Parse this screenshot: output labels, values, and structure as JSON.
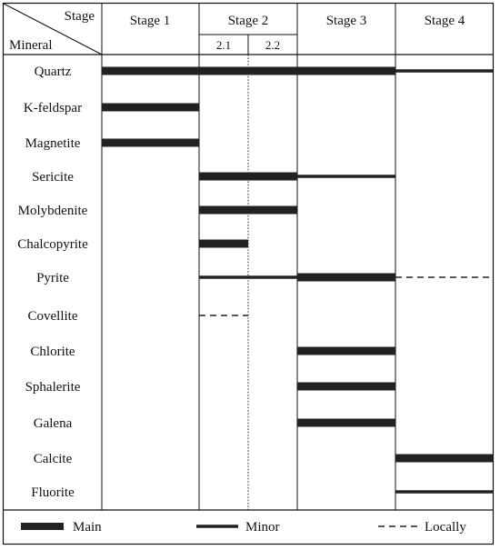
{
  "header": {
    "stage_label": "Stage",
    "mineral_label": "Mineral"
  },
  "stages": [
    {
      "label": "Stage 1"
    },
    {
      "label": "Stage 2",
      "substages": [
        "2.1",
        "2.2"
      ]
    },
    {
      "label": "Stage 3"
    },
    {
      "label": "Stage 4"
    }
  ],
  "minerals": [
    {
      "name": "Quartz",
      "segments": [
        {
          "from": "1",
          "to": "3",
          "weight": "main"
        },
        {
          "from": "4",
          "to": "4",
          "weight": "minor"
        }
      ]
    },
    {
      "name": "K-feldspar",
      "segments": [
        {
          "from": "1",
          "to": "1",
          "weight": "main"
        }
      ]
    },
    {
      "name": "Magnetite",
      "segments": [
        {
          "from": "1",
          "to": "1",
          "weight": "main"
        }
      ]
    },
    {
      "name": "Sericite",
      "segments": [
        {
          "from": "2.1",
          "to": "2.2",
          "weight": "main"
        },
        {
          "from": "3",
          "to": "3",
          "weight": "minor"
        }
      ]
    },
    {
      "name": "Molybdenite",
      "segments": [
        {
          "from": "2.1",
          "to": "2.2",
          "weight": "main"
        }
      ]
    },
    {
      "name": "Chalcopyrite",
      "segments": [
        {
          "from": "2.1",
          "to": "2.1",
          "weight": "main"
        }
      ]
    },
    {
      "name": "Pyrite",
      "segments": [
        {
          "from": "2.1",
          "to": "2.2",
          "weight": "minor"
        },
        {
          "from": "3",
          "to": "3",
          "weight": "main"
        },
        {
          "from": "4",
          "to": "4",
          "weight": "locally"
        }
      ]
    },
    {
      "name": "Covellite",
      "segments": [
        {
          "from": "2.1",
          "to": "2.1",
          "weight": "locally"
        }
      ]
    },
    {
      "name": "Chlorite",
      "segments": [
        {
          "from": "3",
          "to": "3",
          "weight": "main"
        }
      ]
    },
    {
      "name": "Sphalerite",
      "segments": [
        {
          "from": "3",
          "to": "3",
          "weight": "main"
        }
      ]
    },
    {
      "name": "Galena",
      "segments": [
        {
          "from": "3",
          "to": "3",
          "weight": "main"
        }
      ]
    },
    {
      "name": "Calcite",
      "segments": [
        {
          "from": "4",
          "to": "4",
          "weight": "main"
        }
      ]
    },
    {
      "name": "Fluorite",
      "segments": [
        {
          "from": "4",
          "to": "4",
          "weight": "minor"
        }
      ]
    }
  ],
  "legend": [
    {
      "key": "main",
      "label": "Main"
    },
    {
      "key": "minor",
      "label": "Minor"
    },
    {
      "key": "locally",
      "label": "Locally"
    }
  ],
  "colors": {
    "line": "#111111",
    "bar": "#222222",
    "background": "#ffffff"
  }
}
